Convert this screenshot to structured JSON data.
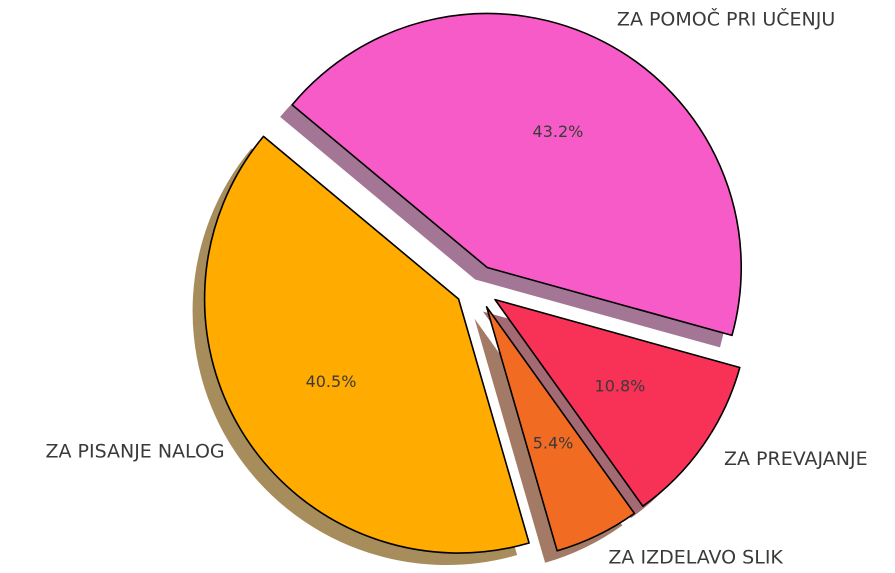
{
  "chart_data": {
    "type": "pie",
    "categories": [
      "ZA POMOČ PRI UČENJU",
      "ZA PISANJE NALOG",
      "ZA IZDELAVO SLIK",
      "ZA PREVAJANJE"
    ],
    "values": [
      43.2,
      40.5,
      5.4,
      10.8
    ],
    "value_labels": [
      "43.2%",
      "40.5%",
      "5.4%",
      "10.8%"
    ],
    "colors": [
      "#f75bc7",
      "#ffab00",
      "#f26b22",
      "#f73256"
    ],
    "shadow": true
  }
}
